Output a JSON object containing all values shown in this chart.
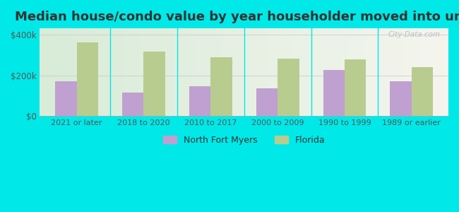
{
  "title": "Median house/condo value by year householder moved into unit",
  "categories": [
    "2021 or later",
    "2018 to 2020",
    "2010 to 2017",
    "2000 to 2009",
    "1990 to 1999",
    "1989 or earlier"
  ],
  "north_fort_myers": [
    170000,
    115000,
    145000,
    135000,
    225000,
    172000
  ],
  "florida": [
    360000,
    315000,
    290000,
    280000,
    278000,
    240000
  ],
  "bar_color_nfm": "#c0a0d0",
  "bar_color_fl": "#b8cc90",
  "background_color": "#00e8e8",
  "plot_bg_left": "#d8ecd8",
  "plot_bg_right": "#f5f5ee",
  "title_fontsize": 13,
  "ylabel_ticks": [
    0,
    200000,
    400000
  ],
  "ylabel_labels": [
    "$0",
    "$200k",
    "$400k"
  ],
  "legend_labels": [
    "North Fort Myers",
    "Florida"
  ],
  "watermark": "City-Data.com",
  "ylim": [
    0,
    430000
  ]
}
